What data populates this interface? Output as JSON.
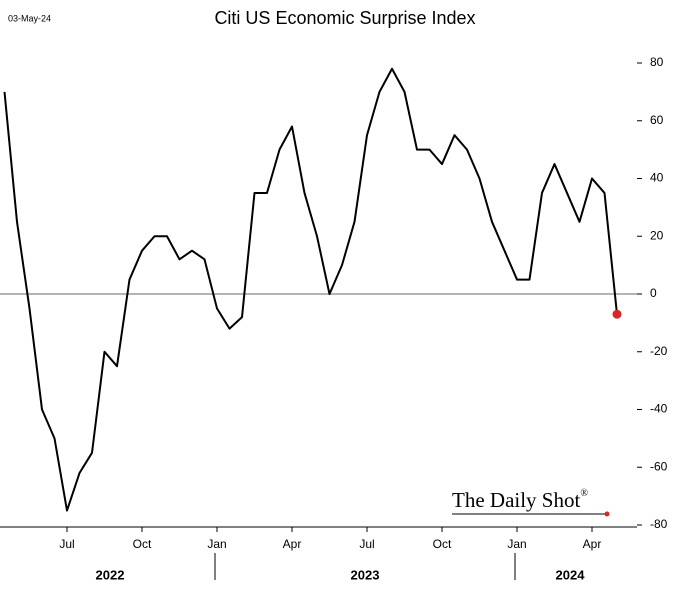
{
  "chart_data": {
    "type": "line",
    "title": "Citi US Economic Surprise Index",
    "date_label": "03-May-24",
    "source": "The Daily Shot",
    "source_mark": "®",
    "categories": [
      null,
      null,
      null,
      null,
      null,
      "Jul",
      null,
      null,
      null,
      null,
      null,
      "Oct",
      null,
      null,
      null,
      null,
      null,
      "Jan",
      null,
      null,
      null,
      null,
      null,
      "Apr",
      null,
      null,
      null,
      null,
      null,
      "Jul",
      null,
      null,
      null,
      null,
      null,
      "Oct",
      null,
      null,
      null,
      null,
      null,
      "Jan",
      null,
      null,
      null,
      null,
      null,
      "Apr",
      null,
      null
    ],
    "year_labels": [
      "2022",
      "2023",
      "2024"
    ],
    "series": [
      {
        "name": "Citi US Economic Surprise Index",
        "color": "#000000",
        "end_marker_color": "#d62728",
        "values": [
          70,
          25,
          -5,
          -40,
          -50,
          -75,
          -62,
          -55,
          -20,
          -25,
          5,
          15,
          20,
          20,
          12,
          15,
          12,
          -5,
          -12,
          -8,
          35,
          35,
          50,
          58,
          35,
          20,
          0,
          10,
          25,
          55,
          70,
          78,
          70,
          50,
          50,
          45,
          55,
          50,
          40,
          25,
          15,
          5,
          5,
          35,
          45,
          35,
          25,
          40,
          35,
          -7
        ]
      }
    ],
    "ylim": [
      -80,
      80
    ],
    "yticks": [
      -80,
      -60,
      -40,
      -20,
      0,
      20,
      40,
      60,
      80
    ],
    "hlines": [
      0
    ],
    "grid": false
  }
}
